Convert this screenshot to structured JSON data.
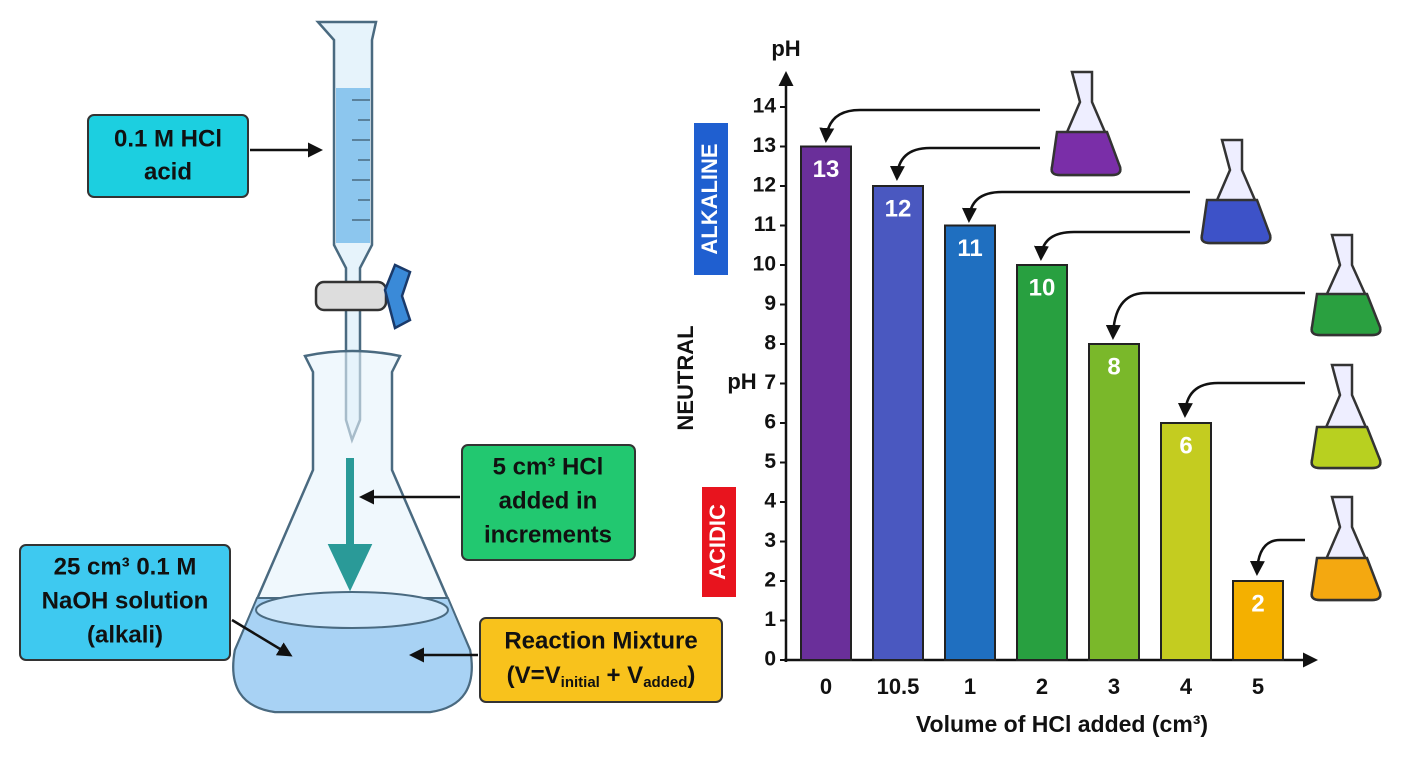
{
  "diagram": {
    "acid_label": {
      "lines": [
        "0.1 M HCl",
        "acid"
      ]
    },
    "increment_label": {
      "lines": [
        "5 cm³ HCl",
        "added in",
        "increments"
      ]
    },
    "alkali_label": {
      "lines": [
        "25 cm³ 0.1 M",
        "NaOH solution",
        "(alkali)"
      ]
    },
    "mixture_label": {
      "title": "Reaction Mixture",
      "formula": [
        "(V=V",
        "initial",
        " + V",
        "added",
        ")"
      ]
    }
  },
  "chart_data": {
    "type": "bar",
    "y_label": "pH",
    "x_label": "Volume of HCl added (cm³)",
    "categories": [
      "0",
      "10.5",
      "1",
      "2",
      "3",
      "4",
      "5"
    ],
    "values": [
      13,
      12,
      11,
      10,
      8,
      6,
      2
    ],
    "colors": [
      "#6a2f9a",
      "#4a58c0",
      "#1f6fc0",
      "#28a040",
      "#7ab82a",
      "#c4cc20",
      "#f4b000"
    ],
    "ylim": [
      0,
      14
    ],
    "yticks": [
      0,
      1,
      2,
      3,
      4,
      5,
      6,
      7,
      8,
      9,
      10,
      11,
      12,
      13,
      14
    ],
    "annotations": {
      "alkaline": "ALKALINE",
      "neutral": "NEUTRAL",
      "neutral_ph": "pH",
      "acidic": "ACIDIC"
    }
  }
}
